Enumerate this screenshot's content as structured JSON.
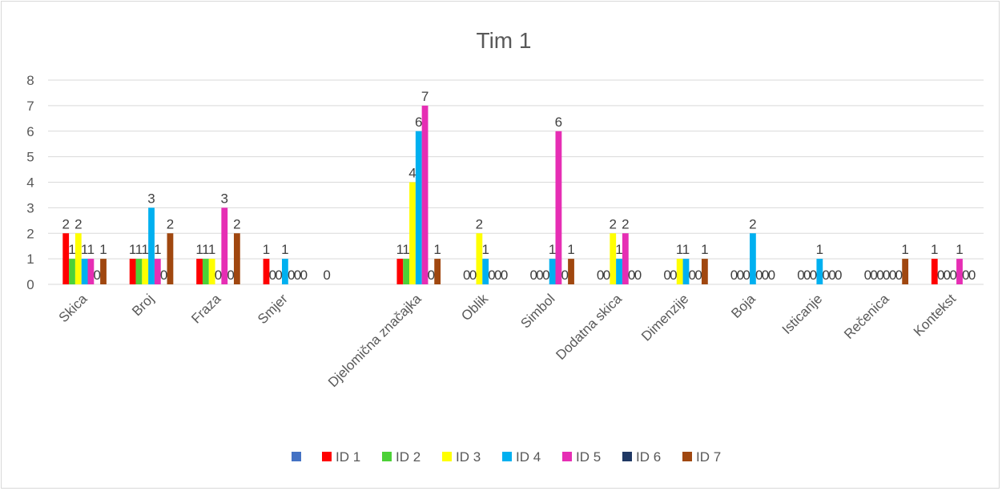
{
  "chart_data": {
    "type": "bar",
    "title": "Tim 1",
    "xlabel": "",
    "ylabel": "",
    "ylim": [
      0,
      8
    ],
    "yticks": [
      0,
      1,
      2,
      3,
      4,
      5,
      6,
      7,
      8
    ],
    "grid": true,
    "legend_position": "bottom",
    "categories": [
      "Skica",
      "Broj",
      "Fraza",
      "Smjer",
      "",
      "Djelomična značajka",
      "Oblik",
      "Simbol",
      "Dodatna skica",
      "Dimenzije",
      "Boja",
      "Isticanje",
      "Rečenica",
      "Kontekst"
    ],
    "series": [
      {
        "name": "",
        "color": "#4472c4",
        "values": [
          null,
          null,
          null,
          null,
          0,
          null,
          null,
          null,
          null,
          null,
          null,
          null,
          null,
          null
        ]
      },
      {
        "name": "ID 1",
        "color": "#ff0000",
        "values": [
          2,
          1,
          1,
          1,
          null,
          1,
          0,
          0,
          0,
          0,
          0,
          0,
          0,
          1
        ]
      },
      {
        "name": "ID 2",
        "color": "#4cd137",
        "values": [
          1,
          1,
          1,
          0,
          null,
          1,
          0,
          0,
          0,
          0,
          0,
          0,
          0,
          0
        ]
      },
      {
        "name": "ID 3",
        "color": "#ffff00",
        "values": [
          2,
          1,
          1,
          0,
          null,
          4,
          2,
          0,
          2,
          1,
          0,
          0,
          0,
          0
        ]
      },
      {
        "name": "ID 4",
        "color": "#00b0f0",
        "values": [
          1,
          3,
          0,
          1,
          null,
          6,
          1,
          1,
          1,
          1,
          2,
          1,
          0,
          0
        ]
      },
      {
        "name": "ID 5",
        "color": "#e62eb4",
        "values": [
          1,
          1,
          3,
          0,
          null,
          7,
          0,
          6,
          2,
          0,
          0,
          0,
          0,
          1
        ]
      },
      {
        "name": "ID 6",
        "color": "#1f3864",
        "values": [
          0,
          0,
          0,
          0,
          null,
          0,
          0,
          0,
          0,
          0,
          0,
          0,
          0,
          0
        ]
      },
      {
        "name": "ID 7",
        "color": "#a0470f",
        "values": [
          1,
          2,
          2,
          0,
          null,
          1,
          0,
          1,
          0,
          1,
          0,
          0,
          1,
          0
        ]
      }
    ]
  }
}
